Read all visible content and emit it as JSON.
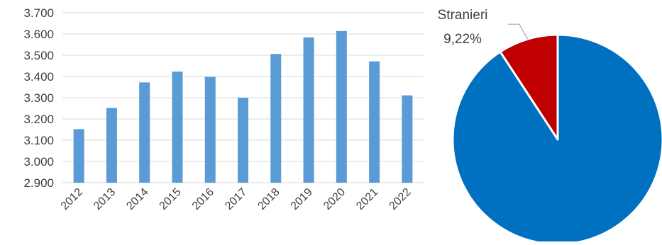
{
  "chart_data": [
    {
      "type": "bar",
      "categories": [
        "2012",
        "2013",
        "2014",
        "2015",
        "2016",
        "2017",
        "2018",
        "2019",
        "2020",
        "2021",
        "2022"
      ],
      "values": [
        3152,
        3252,
        3372,
        3423,
        3398,
        3300,
        3506,
        3584,
        3614,
        3471,
        3311
      ],
      "ylim": [
        2900,
        3700
      ],
      "yticks": [
        "2.900",
        "3.000",
        "3.100",
        "3.200",
        "3.300",
        "3.400",
        "3.500",
        "3.600",
        "3.700"
      ],
      "grid": true,
      "colors": {
        "bar": "#5B9BD5",
        "grid": "#D9D9D9"
      }
    },
    {
      "type": "pie",
      "slices": [
        {
          "label": "Stranieri",
          "value_label": "9,22%",
          "value": 9.22,
          "color": "#C00000"
        },
        {
          "label": "",
          "value": 90.78,
          "color": "#0070C0"
        }
      ]
    }
  ]
}
